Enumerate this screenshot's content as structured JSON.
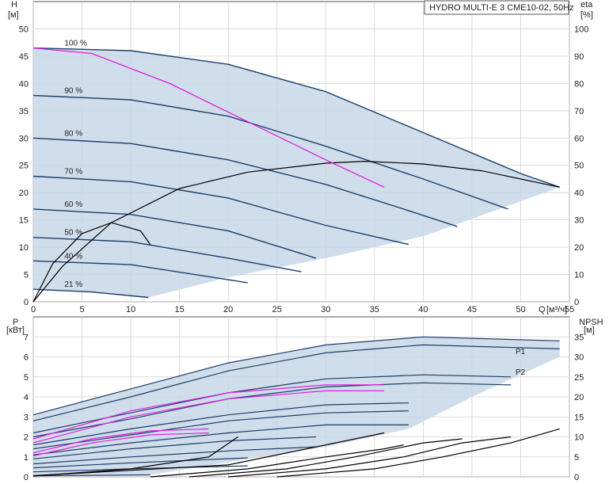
{
  "chart_data": [
    {
      "type": "line",
      "title": "HYDRO MULTI-E 3 CME10-02, 50Hz",
      "x_axis": {
        "label": "Q",
        "unit": "[м³/ч]",
        "range": [
          0,
          55
        ],
        "ticks": [
          0,
          5,
          10,
          15,
          20,
          25,
          30,
          35,
          40,
          45,
          50,
          55
        ]
      },
      "y_left": {
        "label": "H",
        "unit": "[м]",
        "range": [
          0,
          55
        ],
        "ticks": [
          0,
          5,
          10,
          15,
          20,
          25,
          30,
          35,
          40,
          45,
          50
        ]
      },
      "y_right": {
        "label": "eta",
        "unit": "[%]",
        "range": [
          0,
          110
        ],
        "ticks": [
          0,
          10,
          20,
          30,
          40,
          50,
          60,
          70,
          80,
          90,
          100
        ]
      },
      "grid": true,
      "speed_curves": [
        {
          "label": "100 %",
          "points": [
            [
              0,
              46.5
            ],
            [
              10,
              46
            ],
            [
              20,
              43.5
            ],
            [
              30,
              38.5
            ],
            [
              40,
              31
            ],
            [
              50,
              23.5
            ],
            [
              54,
              21
            ]
          ]
        },
        {
          "label": "90 %",
          "points": [
            [
              0,
              37.8
            ],
            [
              10,
              37
            ],
            [
              20,
              34
            ],
            [
              30,
              28.5
            ],
            [
              40,
              22.5
            ],
            [
              48.7,
              17
            ]
          ]
        },
        {
          "label": "80 %",
          "points": [
            [
              0,
              30
            ],
            [
              10,
              29
            ],
            [
              20,
              26
            ],
            [
              30,
              21.5
            ],
            [
              38,
              17
            ],
            [
              43.5,
              13.8
            ]
          ]
        },
        {
          "label": "70 %",
          "points": [
            [
              0,
              23
            ],
            [
              10,
              22
            ],
            [
              20,
              19
            ],
            [
              30,
              14
            ],
            [
              38.5,
              10.5
            ]
          ]
        },
        {
          "label": "60 %",
          "points": [
            [
              0,
              17
            ],
            [
              10,
              16
            ],
            [
              20,
              13
            ],
            [
              29,
              8
            ]
          ]
        },
        {
          "label": "50 %",
          "points": [
            [
              0,
              11.8
            ],
            [
              10,
              11
            ],
            [
              20,
              8
            ],
            [
              27.5,
              5.5
            ]
          ]
        },
        {
          "label": "40 %",
          "points": [
            [
              0,
              7.5
            ],
            [
              10,
              6.8
            ],
            [
              22,
              3.5
            ]
          ]
        },
        {
          "label": "21 %",
          "points": [
            [
              0,
              2.3
            ],
            [
              6,
              1.8
            ],
            [
              11.8,
              0.8
            ]
          ]
        }
      ],
      "efficiency_curve_max": {
        "points": [
          [
            0,
            0
          ],
          [
            3,
            13
          ],
          [
            8,
            29
          ],
          [
            15,
            41.5
          ],
          [
            22,
            47.5
          ],
          [
            30,
            50.8
          ],
          [
            34,
            51.5
          ],
          [
            40,
            50.5
          ],
          [
            46,
            48
          ],
          [
            54,
            42
          ]
        ]
      },
      "efficiency_curve_partial": {
        "points": [
          [
            0,
            0
          ],
          [
            2,
            14
          ],
          [
            5,
            25
          ],
          [
            8,
            29
          ],
          [
            11,
            26
          ],
          [
            12,
            21
          ]
        ]
      },
      "system_curve_magenta": {
        "points": [
          [
            0,
            46.5
          ],
          [
            6,
            45.5
          ],
          [
            14,
            40
          ],
          [
            22,
            33
          ],
          [
            30,
            26
          ],
          [
            36,
            21
          ]
        ]
      }
    },
    {
      "type": "line",
      "title": "",
      "x_axis": {
        "label": "",
        "unit": "",
        "range": [
          0,
          55
        ],
        "ticks": []
      },
      "y_left": {
        "label": "P",
        "unit": "[кВт]",
        "range": [
          0,
          8
        ],
        "ticks": [
          0,
          1,
          2,
          3,
          4,
          5,
          6,
          7
        ]
      },
      "y_right": {
        "label": "NPSH",
        "unit": "[м]",
        "range": [
          0,
          40
        ],
        "ticks": [
          0,
          5,
          10,
          15,
          20,
          25,
          30,
          35
        ]
      },
      "grid": true,
      "series_labels": [
        "P1",
        "P2"
      ],
      "power_curves": [
        {
          "points": [
            [
              0,
              3.1
            ],
            [
              10,
              4.4
            ],
            [
              20,
              5.7
            ],
            [
              30,
              6.6
            ],
            [
              40,
              7.0
            ],
            [
              54,
              6.8
            ]
          ]
        },
        {
          "points": [
            [
              0,
              2.8
            ],
            [
              10,
              4.0
            ],
            [
              20,
              5.3
            ],
            [
              30,
              6.2
            ],
            [
              40,
              6.6
            ],
            [
              54,
              6.4
            ]
          ]
        },
        {
          "points": [
            [
              0,
              2.2
            ],
            [
              10,
              3.2
            ],
            [
              20,
              4.2
            ],
            [
              30,
              4.9
            ],
            [
              40,
              5.1
            ],
            [
              49,
              5.0
            ]
          ]
        },
        {
          "points": [
            [
              0,
              2.0
            ],
            [
              10,
              2.9
            ],
            [
              20,
              3.9
            ],
            [
              30,
              4.5
            ],
            [
              40,
              4.7
            ],
            [
              49,
              4.6
            ]
          ]
        },
        {
          "points": [
            [
              0,
              1.6
            ],
            [
              10,
              2.4
            ],
            [
              20,
              3.1
            ],
            [
              30,
              3.6
            ],
            [
              38.5,
              3.7
            ]
          ]
        },
        {
          "points": [
            [
              0,
              1.4
            ],
            [
              10,
              2.1
            ],
            [
              20,
              2.8
            ],
            [
              30,
              3.2
            ],
            [
              38.5,
              3.3
            ]
          ]
        },
        {
          "points": [
            [
              0,
              1.1
            ],
            [
              10,
              1.7
            ],
            [
              20,
              2.2
            ],
            [
              30,
              2.6
            ],
            [
              38.5,
              2.6
            ]
          ]
        },
        {
          "points": [
            [
              0,
              0.9
            ],
            [
              10,
              1.4
            ],
            [
              20,
              1.8
            ],
            [
              29,
              2.0
            ]
          ]
        },
        {
          "points": [
            [
              0,
              0.65
            ],
            [
              10,
              1.0
            ],
            [
              20,
              1.3
            ],
            [
              29,
              1.5
            ]
          ]
        },
        {
          "points": [
            [
              0,
              0.45
            ],
            [
              10,
              0.7
            ],
            [
              22,
              0.95
            ]
          ]
        },
        {
          "points": [
            [
              0,
              0.25
            ],
            [
              10,
              0.4
            ],
            [
              22,
              0.55
            ]
          ]
        },
        {
          "points": [
            [
              0,
              0.05
            ],
            [
              12,
              0.1
            ]
          ]
        }
      ],
      "power_magenta": [
        {
          "points": [
            [
              0,
              1.9
            ],
            [
              10,
              3.3
            ],
            [
              20,
              4.2
            ],
            [
              30,
              4.6
            ],
            [
              36,
              4.6
            ]
          ]
        },
        {
          "points": [
            [
              0,
              1.7
            ],
            [
              10,
              3.0
            ],
            [
              20,
              3.9
            ],
            [
              30,
              4.3
            ],
            [
              36,
              4.3
            ]
          ]
        },
        {
          "points": [
            [
              0,
              1.2
            ],
            [
              6,
              1.9
            ],
            [
              12,
              2.3
            ],
            [
              18,
              2.4
            ]
          ]
        },
        {
          "points": [
            [
              0,
              1.05
            ],
            [
              6,
              1.7
            ],
            [
              12,
              2.1
            ],
            [
              18,
              2.2
            ]
          ]
        }
      ],
      "npsh_curves": [
        {
          "points": [
            [
              0,
              0.3
            ],
            [
              20,
              3
            ],
            [
              36,
              11
            ]
          ]
        },
        {
          "points": [
            [
              0,
              0.2
            ],
            [
              10,
              2
            ],
            [
              18,
              5
            ],
            [
              21,
              10
            ]
          ]
        },
        {
          "points": [
            [
              25,
              0
            ],
            [
              35,
              2
            ],
            [
              42,
              5
            ],
            [
              49,
              8.5
            ],
            [
              54,
              12
            ]
          ]
        },
        {
          "points": [
            [
              20,
              0
            ],
            [
              30,
              2
            ],
            [
              38,
              5
            ],
            [
              44,
              8.5
            ],
            [
              49,
              10
            ]
          ]
        },
        {
          "points": [
            [
              16,
              0
            ],
            [
              26,
              2
            ],
            [
              33,
              5
            ],
            [
              40,
              8.5
            ],
            [
              44,
              9.5
            ]
          ]
        },
        {
          "points": [
            [
              12,
              0
            ],
            [
              22,
              2
            ],
            [
              30,
              5
            ],
            [
              36,
              7
            ],
            [
              38,
              8
            ]
          ]
        }
      ]
    }
  ]
}
